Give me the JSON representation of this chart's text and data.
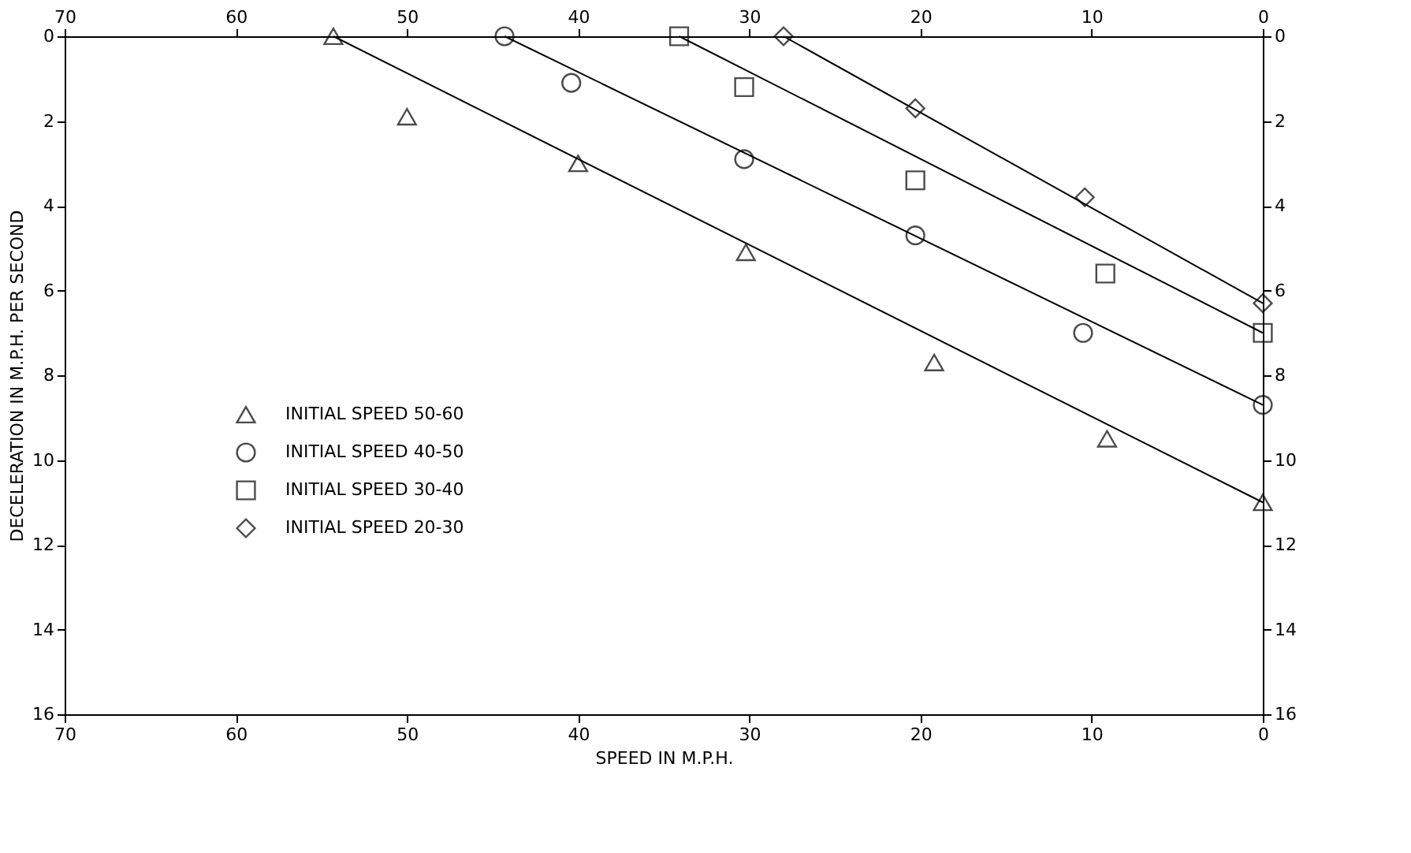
{
  "chart_data": {
    "type": "scatter",
    "xlabel": "SPEED IN M.P.H.",
    "ylabel": "DECELERATION IN M.P.H. PER SECOND",
    "xlim": [
      70,
      0
    ],
    "xticks": [
      70,
      60,
      50,
      40,
      30,
      20,
      10,
      0
    ],
    "x2lim": [
      70,
      0
    ],
    "x2ticks": [
      70,
      60,
      50,
      40,
      30,
      20,
      10,
      0
    ],
    "ylim": [
      16,
      0
    ],
    "yticks": [
      0,
      2,
      4,
      6,
      8,
      10,
      12,
      14,
      16
    ],
    "y2lim": [
      16,
      0
    ],
    "y2ticks": [
      0,
      2,
      4,
      6,
      8,
      10,
      12,
      14,
      16
    ],
    "grid": false,
    "legend": "left",
    "series": [
      {
        "name": "INITIAL SPEED 50-60",
        "marker": "triangle",
        "color": "#000000",
        "x": [
          54.3,
          50,
          40,
          30.2,
          19.2,
          9.1,
          0
        ],
        "values": [
          0,
          1.9,
          3,
          5.1,
          7.7,
          9.5,
          11
        ]
      },
      {
        "name": "INITIAL SPEED 40-50",
        "marker": "circle",
        "color": "#000000",
        "x": [
          44.3,
          40.4,
          30.3,
          20.3,
          10.5,
          0
        ],
        "values": [
          0,
          1.1,
          2.9,
          4.7,
          7,
          8.7
        ]
      },
      {
        "name": "INITIAL SPEED 30-40",
        "marker": "square",
        "color": "#000000",
        "x": [
          34.1,
          30.3,
          20.3,
          9.2,
          0
        ],
        "values": [
          0,
          1.2,
          3.4,
          5.6,
          7
        ]
      },
      {
        "name": "INITIAL SPEED 20-30",
        "marker": "diamond",
        "color": "#000000",
        "x": [
          28,
          20.3,
          10.4,
          0
        ],
        "values": [
          0,
          1.7,
          3.8,
          6.3
        ]
      },
      {
        "type": "line",
        "color": "#000000",
        "x": [
          54.3,
          0
        ],
        "values": [
          0,
          11
        ]
      },
      {
        "type": "line",
        "color": "#000000",
        "x": [
          44.3,
          0
        ],
        "values": [
          0,
          8.7
        ]
      },
      {
        "type": "line",
        "color": "#000000",
        "x": [
          34.1,
          0
        ],
        "values": [
          0,
          7
        ]
      },
      {
        "type": "line",
        "color": "#000000",
        "x": [
          28,
          0
        ],
        "values": [
          0,
          6.3
        ]
      }
    ]
  }
}
